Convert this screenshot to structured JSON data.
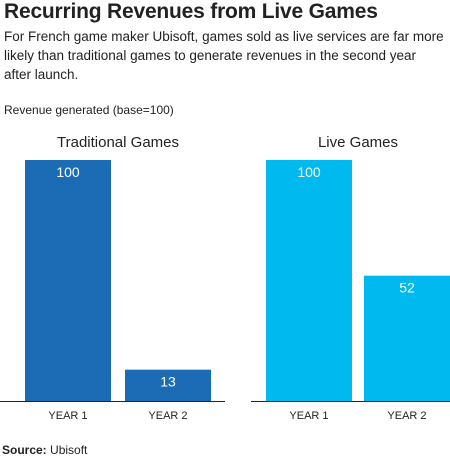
{
  "header": {
    "title": "Recurring Revenues from Live Games",
    "subtitle": "For French game maker Ubisoft, games sold as live services are far more likely than traditional games to generate revenues in the second year after launch."
  },
  "footer": {
    "source_label": "Source:",
    "source_value": "Ubisoft"
  },
  "chart_data": {
    "type": "bar",
    "ylabel": "Revenue generated (base=100)",
    "ylim": [
      0,
      100
    ],
    "grid": false,
    "legend": "none",
    "categories": [
      "YEAR 1",
      "YEAR 2"
    ],
    "panels": [
      {
        "title": "Traditional Games",
        "values": [
          100,
          13
        ],
        "color": "#1b6cb5"
      },
      {
        "title": "Live Games",
        "values": [
          100,
          52
        ],
        "color": "#00b9ef"
      }
    ],
    "baseline_color": "#222222"
  }
}
